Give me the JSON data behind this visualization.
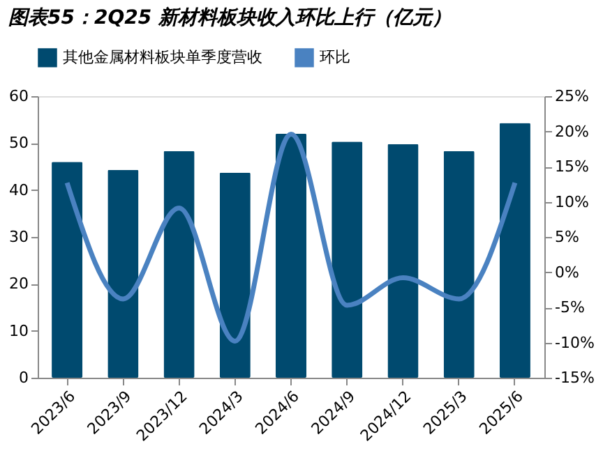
{
  "chart_data": {
    "type": "bar",
    "title": "图表55：2Q25 新材料板块收入环比上行（亿元）",
    "categories": [
      "2023/6",
      "2023/9",
      "2023/12",
      "2024/3",
      "2024/6",
      "2024/9",
      "2024/12",
      "2025/3",
      "2025/6"
    ],
    "series": [
      {
        "name": "其他金属材料板块单季度营收",
        "color": "#004a6f",
        "values": [
          46,
          44.3,
          48.3,
          43.7,
          52,
          50.3,
          49.8,
          48.3,
          54.3
        ]
      },
      {
        "name": "环比",
        "type": "line",
        "axis": "y2",
        "color": "#4a82c1",
        "values": [
          12.7,
          -3.8,
          9.1,
          -9.8,
          19.6,
          -4.7,
          -0.8,
          -3.8,
          12.7
        ]
      }
    ],
    "ylim": [
      0,
      60
    ],
    "yticks": [
      0,
      10,
      20,
      30,
      40,
      50,
      60
    ],
    "y2lim": [
      -15,
      25
    ],
    "y2ticks": [
      {
        "value": -15,
        "label": "-15%"
      },
      {
        "value": -10,
        "label": "-10%"
      },
      {
        "value": -5,
        "label": "-5%"
      },
      {
        "value": 0,
        "label": "0%"
      },
      {
        "value": 5,
        "label": "5%"
      },
      {
        "value": 10,
        "label": "10%"
      },
      {
        "value": 15,
        "label": "15%"
      },
      {
        "value": 20,
        "label": "20%"
      },
      {
        "value": 25,
        "label": "25%"
      }
    ],
    "legend": "top",
    "grid": false,
    "marker": "none",
    "line_style": "solid"
  }
}
